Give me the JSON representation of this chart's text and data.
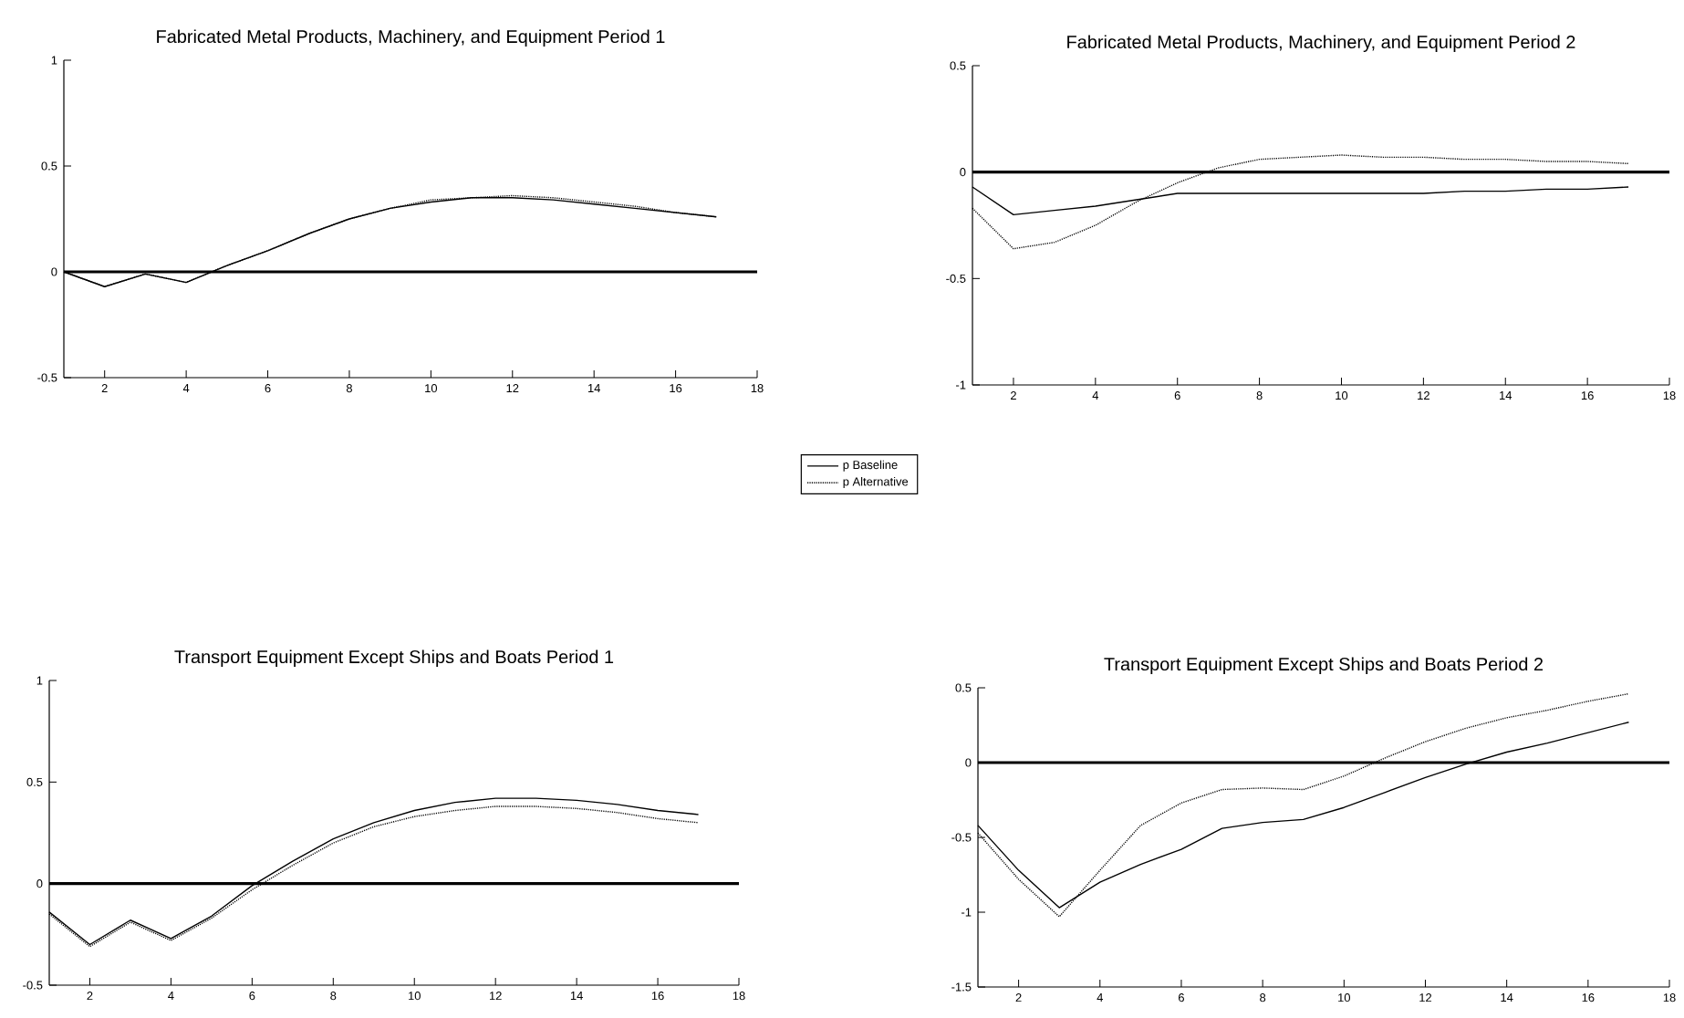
{
  "chart_data": [
    {
      "type": "line",
      "title": "Fabricated Metal Products, Machinery, and Equipment Period 1",
      "x": [
        1,
        2,
        3,
        4,
        5,
        6,
        7,
        8,
        9,
        10,
        11,
        12,
        13,
        14,
        15,
        16,
        17
      ],
      "xlim": [
        1,
        18
      ],
      "xticks": [
        2,
        4,
        6,
        8,
        10,
        12,
        14,
        16,
        18
      ],
      "ylim": [
        -0.5,
        1
      ],
      "yticks": [
        -0.5,
        0,
        0.5,
        1
      ],
      "legend": "bottom right",
      "grid": false,
      "marker": "none",
      "ref_lines": [
        {
          "axis": "y",
          "value": 0,
          "color": "#000000"
        }
      ],
      "series": [
        {
          "name": "p Baseline",
          "color": "#000000",
          "line_style": "solid",
          "values": [
            0,
            -0.07,
            -0.01,
            -0.05,
            0.03,
            0.1,
            0.18,
            0.25,
            0.3,
            0.33,
            0.35,
            0.35,
            0.34,
            0.32,
            0.3,
            0.28,
            0.26
          ]
        },
        {
          "name": "p Alternative",
          "color": "#000000",
          "line_style": "dotted",
          "values": [
            0,
            -0.07,
            -0.01,
            -0.05,
            0.03,
            0.1,
            0.18,
            0.25,
            0.3,
            0.34,
            0.35,
            0.36,
            0.35,
            0.33,
            0.31,
            0.28,
            0.26
          ]
        }
      ]
    },
    {
      "type": "line",
      "title": "Fabricated Metal Products, Machinery, and Equipment Period 2",
      "x": [
        1,
        2,
        3,
        4,
        5,
        6,
        7,
        8,
        9,
        10,
        11,
        12,
        13,
        14,
        15,
        16,
        17
      ],
      "xlim": [
        1,
        18
      ],
      "xticks": [
        2,
        4,
        6,
        8,
        10,
        12,
        14,
        16,
        18
      ],
      "ylim": [
        -1,
        0.5
      ],
      "yticks": [
        -1,
        -0.5,
        0,
        0.5
      ],
      "grid": false,
      "marker": "none",
      "ref_lines": [
        {
          "axis": "y",
          "value": 0,
          "color": "#000000"
        }
      ],
      "series": [
        {
          "color": "#000000",
          "line_style": "solid",
          "values": [
            -0.07,
            -0.2,
            -0.18,
            -0.16,
            -0.13,
            -0.1,
            -0.1,
            -0.1,
            -0.1,
            -0.1,
            -0.1,
            -0.1,
            -0.09,
            -0.09,
            -0.08,
            -0.08,
            -0.07
          ]
        },
        {
          "color": "#000000",
          "line_style": "dotted",
          "values": [
            -0.17,
            -0.36,
            -0.33,
            -0.25,
            -0.14,
            -0.05,
            0.02,
            0.06,
            0.07,
            0.08,
            0.07,
            0.07,
            0.06,
            0.06,
            0.05,
            0.05,
            0.04
          ]
        }
      ]
    },
    {
      "type": "line",
      "title": "Transport Equipment Except Ships and Boats Period 1",
      "x": [
        1,
        2,
        3,
        4,
        5,
        6,
        7,
        8,
        9,
        10,
        11,
        12,
        13,
        14,
        15,
        16,
        17
      ],
      "xlim": [
        1,
        18
      ],
      "xticks": [
        2,
        4,
        6,
        8,
        10,
        12,
        14,
        16,
        18
      ],
      "ylim": [
        -0.5,
        1
      ],
      "yticks": [
        -0.5,
        0,
        0.5,
        1
      ],
      "grid": false,
      "marker": "none",
      "ref_lines": [
        {
          "axis": "y",
          "value": 0,
          "color": "#000000"
        }
      ],
      "series": [
        {
          "color": "#000000",
          "line_style": "solid",
          "values": [
            -0.14,
            -0.3,
            -0.18,
            -0.27,
            -0.16,
            -0.01,
            0.11,
            0.22,
            0.3,
            0.36,
            0.4,
            0.42,
            0.42,
            0.41,
            0.39,
            0.36,
            0.34
          ]
        },
        {
          "color": "#000000",
          "line_style": "dotted",
          "values": [
            -0.15,
            -0.31,
            -0.19,
            -0.28,
            -0.17,
            -0.03,
            0.09,
            0.2,
            0.28,
            0.33,
            0.36,
            0.38,
            0.38,
            0.37,
            0.35,
            0.32,
            0.3
          ]
        }
      ]
    },
    {
      "type": "line",
      "title": "Transport Equipment Except Ships and Boats Period 2",
      "x": [
        1,
        2,
        3,
        4,
        5,
        6,
        7,
        8,
        9,
        10,
        11,
        12,
        13,
        14,
        15,
        16,
        17
      ],
      "xlim": [
        1,
        18
      ],
      "xticks": [
        2,
        4,
        6,
        8,
        10,
        12,
        14,
        16,
        18
      ],
      "ylim": [
        -1.5,
        0.5
      ],
      "yticks": [
        -1.5,
        -1,
        -0.5,
        0,
        0.5
      ],
      "grid": false,
      "marker": "none",
      "ref_lines": [
        {
          "axis": "y",
          "value": 0,
          "color": "#000000"
        }
      ],
      "series": [
        {
          "color": "#000000",
          "line_style": "solid",
          "values": [
            -0.42,
            -0.72,
            -0.97,
            -0.8,
            -0.68,
            -0.58,
            -0.44,
            -0.4,
            -0.38,
            -0.3,
            -0.2,
            -0.1,
            -0.01,
            0.07,
            0.13,
            0.2,
            0.27
          ]
        },
        {
          "color": "#000000",
          "line_style": "dotted",
          "values": [
            -0.47,
            -0.78,
            -1.03,
            -0.72,
            -0.42,
            -0.27,
            -0.18,
            -0.17,
            -0.18,
            -0.09,
            0.03,
            0.14,
            0.23,
            0.3,
            0.35,
            0.41,
            0.46
          ]
        }
      ]
    }
  ]
}
